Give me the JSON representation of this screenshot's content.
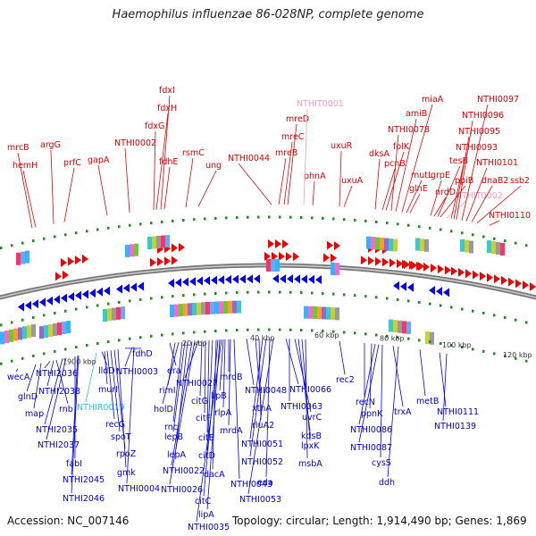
{
  "title": "Haemophilus influenzae 86-028NP, complete genome",
  "footer": {
    "accession": "Accession: NC_007146",
    "summary": "Topology: circular; Length: 1,914,490 bp; Genes: 1,869"
  },
  "colors": {
    "forward": "#ee0000",
    "reverse": "#0000ee",
    "highlight_pink": "#f09cc8",
    "highlight_cyan": "#33bbff",
    "ruler_dots": "#228822",
    "backbone": "#777777"
  },
  "ruler_ticks": [
    "1900 kbp",
    "20 kbp",
    "40 kbp",
    "60 kbp",
    "80 kbp",
    "100 kbp",
    "120 kbp"
  ],
  "top_labels": [
    {
      "text": "mrcB",
      "color": "#dd0000"
    },
    {
      "text": "hemH",
      "color": "#dd0000"
    },
    {
      "text": "argG",
      "color": "#dd0000"
    },
    {
      "text": "prfC",
      "color": "#dd0000"
    },
    {
      "text": "gapA",
      "color": "#dd0000"
    },
    {
      "text": "NTHI0002",
      "color": "#dd0000"
    },
    {
      "text": "fdxG",
      "color": "#dd0000"
    },
    {
      "text": "fdxH",
      "color": "#dd0000"
    },
    {
      "text": "fdxI",
      "color": "#dd0000"
    },
    {
      "text": "fdhE",
      "color": "#dd0000"
    },
    {
      "text": "rsmC",
      "color": "#dd0000"
    },
    {
      "text": "ung",
      "color": "#dd0000"
    },
    {
      "text": "NTHI0044",
      "color": "#dd0000"
    },
    {
      "text": "mreB",
      "color": "#dd0000"
    },
    {
      "text": "mreC",
      "color": "#dd0000"
    },
    {
      "text": "mreD",
      "color": "#dd0000"
    },
    {
      "text": "NTHIT0001",
      "color": "#f09cc8"
    },
    {
      "text": "phnA",
      "color": "#dd0000"
    },
    {
      "text": "uxuR",
      "color": "#dd0000"
    },
    {
      "text": "uxuA",
      "color": "#dd0000"
    },
    {
      "text": "dksA",
      "color": "#dd0000"
    },
    {
      "text": "pcnB",
      "color": "#dd0000"
    },
    {
      "text": "folK",
      "color": "#dd0000"
    },
    {
      "text": "NTHI0078",
      "color": "#dd0000"
    },
    {
      "text": "amiB",
      "color": "#dd0000"
    },
    {
      "text": "miaA",
      "color": "#dd0000"
    },
    {
      "text": "mutL",
      "color": "#dd0000"
    },
    {
      "text": "glnE",
      "color": "#dd0000"
    },
    {
      "text": "grpE",
      "color": "#dd0000"
    },
    {
      "text": "nrdD",
      "color": "#dd0000"
    },
    {
      "text": "tesB",
      "color": "#dd0000"
    },
    {
      "text": "ppiB",
      "color": "#dd0000"
    },
    {
      "text": "NTHIT0002",
      "color": "#f09cc8"
    },
    {
      "text": "NTHI0093",
      "color": "#dd0000"
    },
    {
      "text": "NTHI0095",
      "color": "#dd0000"
    },
    {
      "text": "NTHI0096",
      "color": "#dd0000"
    },
    {
      "text": "NTHI0097",
      "color": "#dd0000"
    },
    {
      "text": "NTHI0101",
      "color": "#dd0000"
    },
    {
      "text": "dnaB2",
      "color": "#dd0000"
    },
    {
      "text": "ssb2",
      "color": "#dd0000"
    },
    {
      "text": "NTHI0110",
      "color": "#dd0000"
    }
  ],
  "bottom_labels": [
    {
      "text": "wecA",
      "color": "#0000cc"
    },
    {
      "text": "glnD",
      "color": "#0000cc"
    },
    {
      "text": "map",
      "color": "#0000cc"
    },
    {
      "text": "NTHI2036",
      "color": "#0000cc"
    },
    {
      "text": "NTHI2038",
      "color": "#0000cc"
    },
    {
      "text": "rnb",
      "color": "#0000cc"
    },
    {
      "text": "NTHI2035",
      "color": "#0000cc"
    },
    {
      "text": "NTHI2037",
      "color": "#0000cc"
    },
    {
      "text": "fabI",
      "color": "#0000cc"
    },
    {
      "text": "NTHI2045",
      "color": "#0000cc"
    },
    {
      "text": "NTHI2046",
      "color": "#0000cc"
    },
    {
      "text": "NTHIR0019",
      "color": "#33bbff"
    },
    {
      "text": "lldD",
      "color": "#0000cc"
    },
    {
      "text": "murI",
      "color": "#0000cc"
    },
    {
      "text": "recG",
      "color": "#0000cc"
    },
    {
      "text": "spoT",
      "color": "#0000cc"
    },
    {
      "text": "rpoZ",
      "color": "#0000cc"
    },
    {
      "text": "gmk",
      "color": "#0000cc"
    },
    {
      "text": "fdhD",
      "color": "#0000cc"
    },
    {
      "text": "NTHI0003",
      "color": "#0000cc"
    },
    {
      "text": "NTHI0004",
      "color": "#0000cc"
    },
    {
      "text": "era",
      "color": "#0000cc"
    },
    {
      "text": "rimI",
      "color": "#0000cc"
    },
    {
      "text": "holD",
      "color": "#0000cc"
    },
    {
      "text": "rnc",
      "color": "#0000cc"
    },
    {
      "text": "lepB",
      "color": "#0000cc"
    },
    {
      "text": "lepA",
      "color": "#0000cc"
    },
    {
      "text": "NTHI0022",
      "color": "#0000cc"
    },
    {
      "text": "NTHI0026",
      "color": "#0000cc"
    },
    {
      "text": "NTHI0027",
      "color": "#0000cc"
    },
    {
      "text": "citG",
      "color": "#0000cc"
    },
    {
      "text": "citF",
      "color": "#0000cc"
    },
    {
      "text": "citE",
      "color": "#0000cc"
    },
    {
      "text": "citD",
      "color": "#0000cc"
    },
    {
      "text": "dacA",
      "color": "#0000cc"
    },
    {
      "text": "citC",
      "color": "#0000cc"
    },
    {
      "text": "lipA",
      "color": "#0000cc"
    },
    {
      "text": "NTHI0035",
      "color": "#0000cc"
    },
    {
      "text": "lipB",
      "color": "#0000cc"
    },
    {
      "text": "rlpA",
      "color": "#0000cc"
    },
    {
      "text": "mrdB",
      "color": "#0000cc"
    },
    {
      "text": "mrdA",
      "color": "#0000cc"
    },
    {
      "text": "NTHI0043",
      "color": "#0000cc"
    },
    {
      "text": "NTHI0048",
      "color": "#0000cc"
    },
    {
      "text": "xthA",
      "color": "#0000cc"
    },
    {
      "text": "rluA2",
      "color": "#0000cc"
    },
    {
      "text": "NTHI0051",
      "color": "#0000cc"
    },
    {
      "text": "NTHI0052",
      "color": "#0000cc"
    },
    {
      "text": "eda",
      "color": "#0000cc"
    },
    {
      "text": "NTHI0053",
      "color": "#0000cc"
    },
    {
      "text": "NTHI0066",
      "color": "#0000cc"
    },
    {
      "text": "NTHI0063",
      "color": "#0000cc"
    },
    {
      "text": "uvrC",
      "color": "#0000cc"
    },
    {
      "text": "kdsB",
      "color": "#0000cc"
    },
    {
      "text": "lpxK",
      "color": "#0000cc"
    },
    {
      "text": "msbA",
      "color": "#0000cc"
    },
    {
      "text": "rec2",
      "color": "#0000cc"
    },
    {
      "text": "recN",
      "color": "#0000cc"
    },
    {
      "text": "ppnK",
      "color": "#0000cc"
    },
    {
      "text": "NTHI0086",
      "color": "#0000cc"
    },
    {
      "text": "NTHI0087",
      "color": "#0000cc"
    },
    {
      "text": "cysS",
      "color": "#0000cc"
    },
    {
      "text": "trxA",
      "color": "#0000cc"
    },
    {
      "text": "ddh",
      "color": "#0000cc"
    },
    {
      "text": "metB",
      "color": "#0000cc"
    },
    {
      "text": "NTHI0111",
      "color": "#0000cc"
    },
    {
      "text": "NTHI0139",
      "color": "#0000cc"
    }
  ]
}
